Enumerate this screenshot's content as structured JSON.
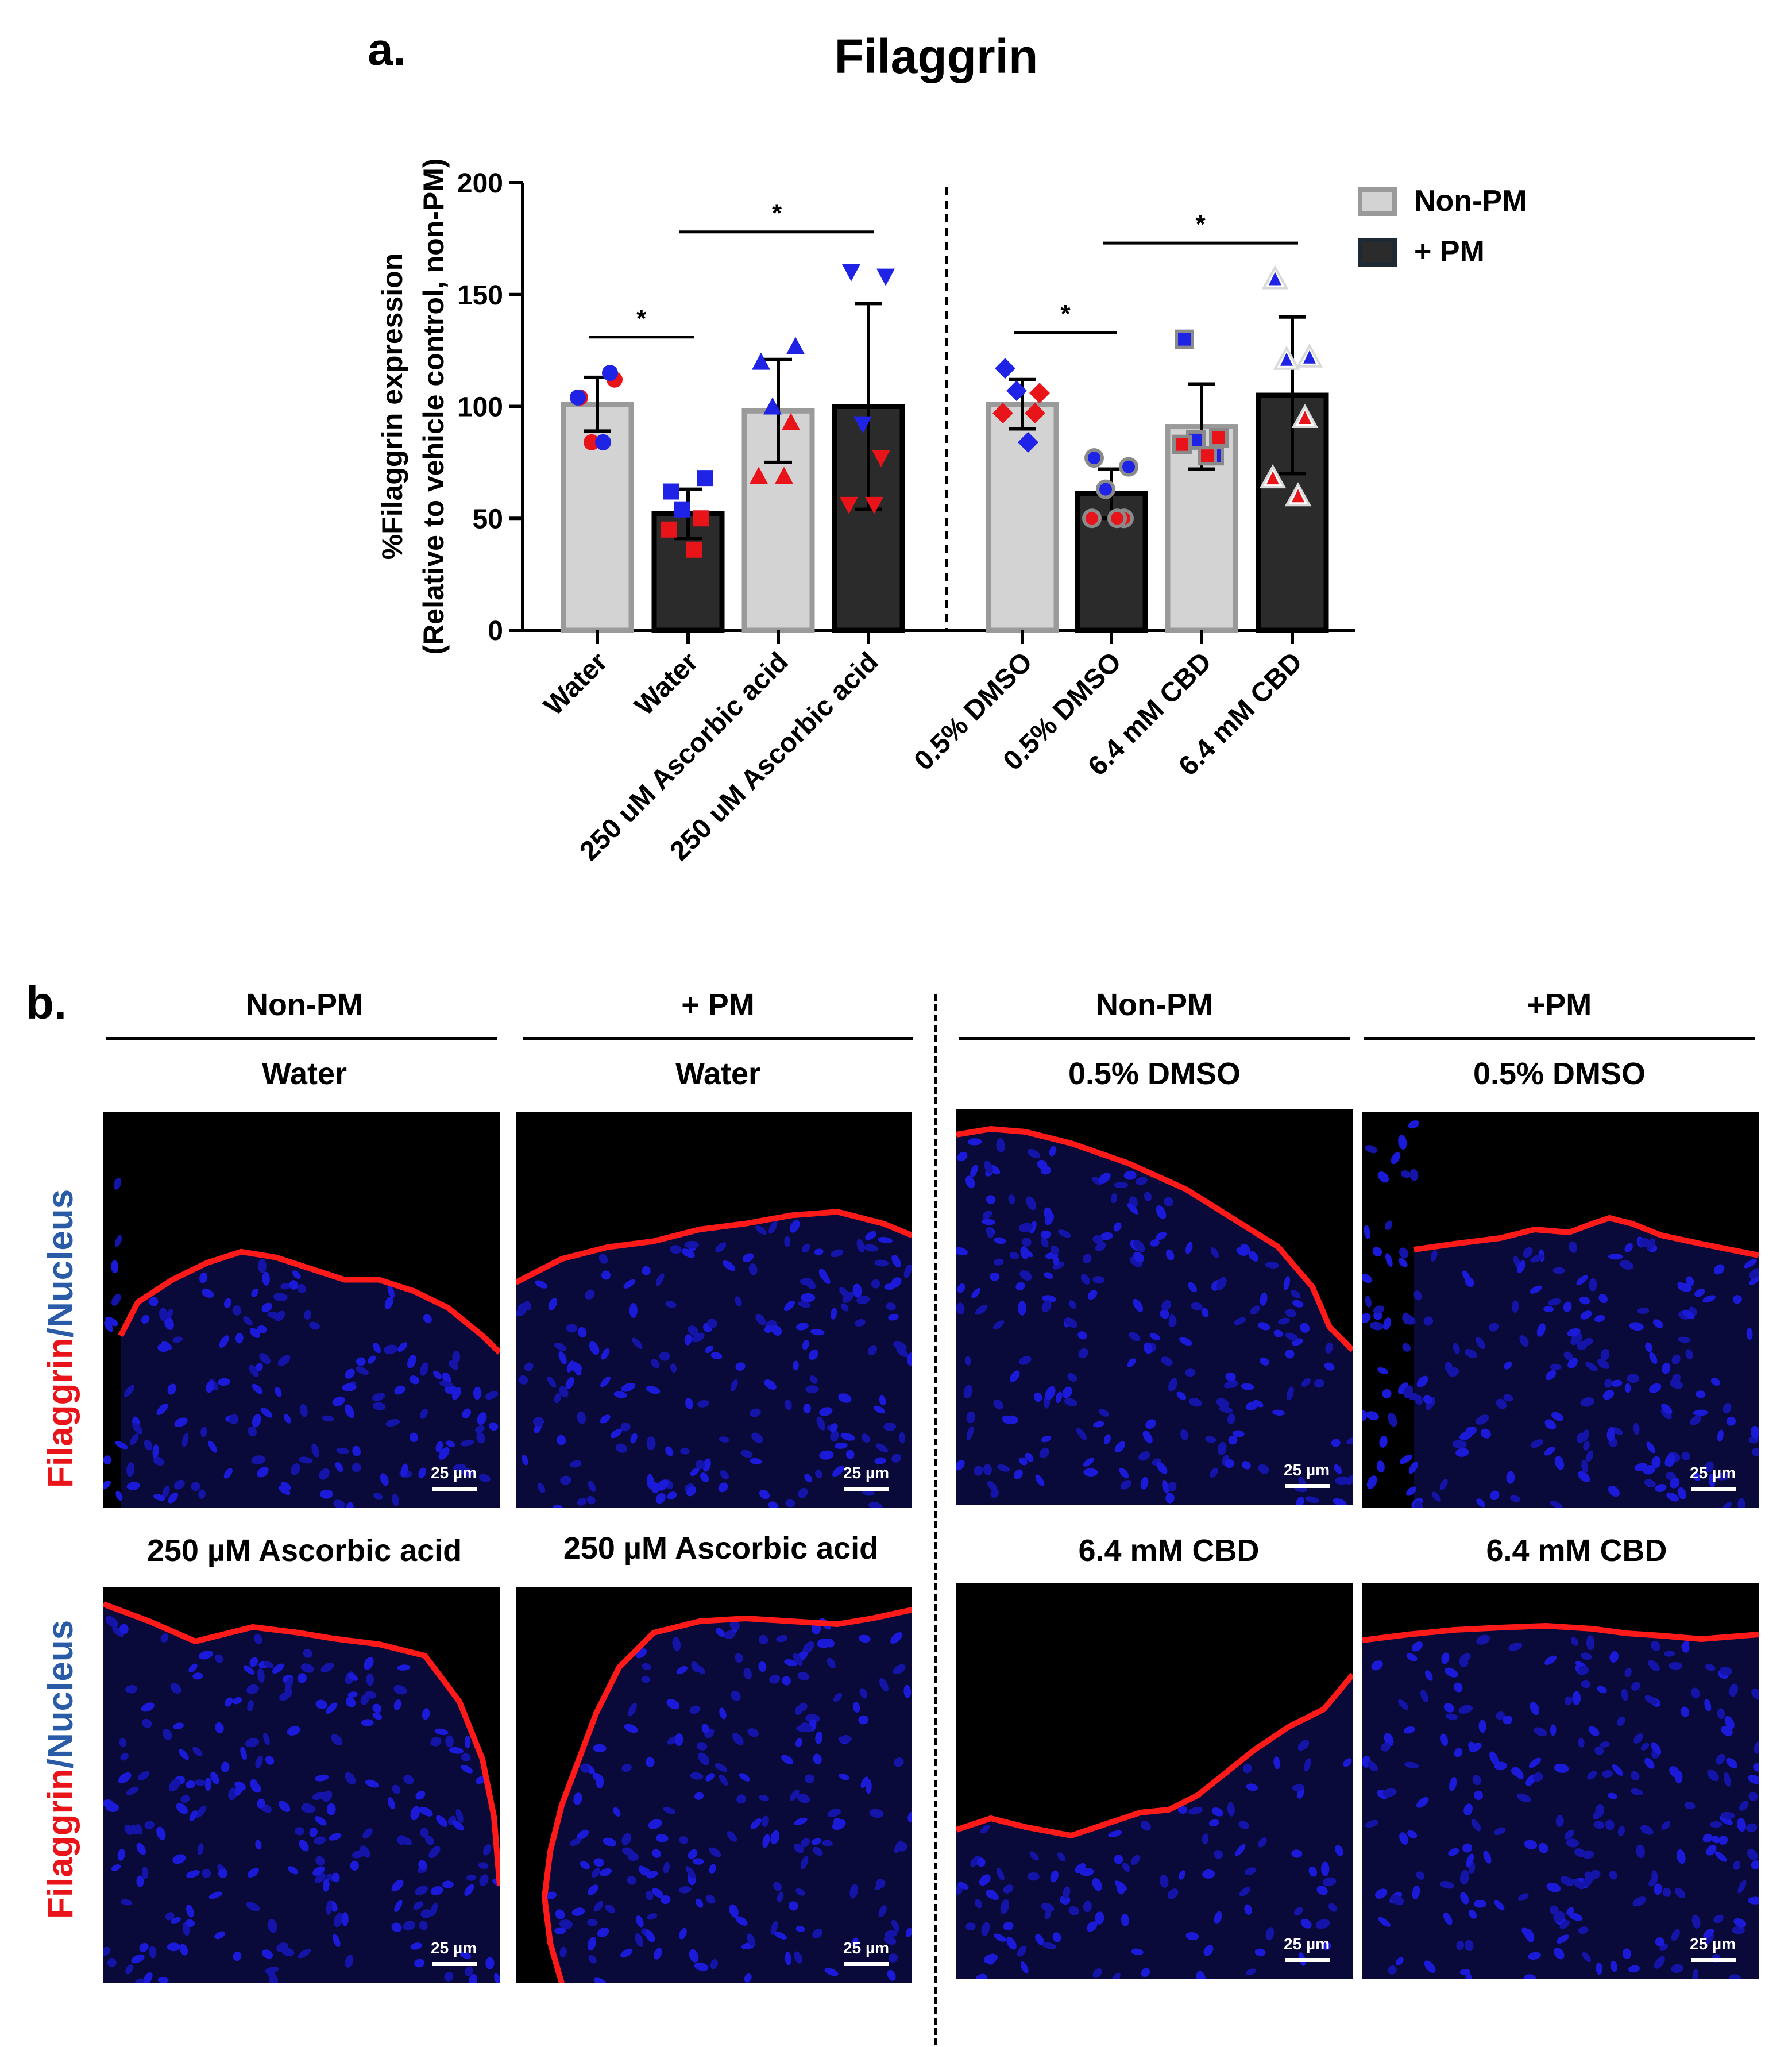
{
  "panel_a": {
    "letter": "a."
  },
  "panel_b": {
    "letter": "b.",
    "headers": [
      {
        "group": "Non-PM",
        "treatment": "Water"
      },
      {
        "group": "+ PM",
        "treatment": "Water"
      },
      {
        "group": "Non-PM",
        "treatment": "0.5% DMSO"
      },
      {
        "group": "+PM",
        "treatment": "0.5% DMSO"
      }
    ],
    "row2_headers": [
      "250 µM Ascorbic acid",
      "250 µM Ascorbic acid",
      "6.4 mM CBD",
      "6.4 mM CBD"
    ],
    "side_label": {
      "stain": "Filaggrin",
      "sep": "/",
      "counter": "Nucleus"
    },
    "scale_label": "25 µm"
  },
  "chart_data": {
    "type": "bar",
    "title": "Filaggrin",
    "ylabel_line1": "%Filaggrin expression",
    "ylabel_line2": "(Relative to vehicle control, non-PM)",
    "ylim": [
      0,
      200
    ],
    "yticks": [
      0,
      50,
      100,
      150,
      200
    ],
    "legend": [
      {
        "label": "Non-PM",
        "color": "#d3d3d3"
      },
      {
        "label": "+ PM",
        "color": "#2b2b2b"
      }
    ],
    "categories": [
      "Water",
      "Water",
      "250 uM Ascorbic acid",
      "250 uM Ascorbic acid",
      "0.5% DMSO",
      "0.5% DMSO",
      "6.4 mM CBD",
      "6.4 mM CBD"
    ],
    "groups": [
      "Non-PM",
      "+ PM",
      "Non-PM",
      "+ PM",
      "Non-PM",
      "+ PM",
      "Non-PM",
      "+ PM"
    ],
    "values": [
      101,
      52,
      98,
      100,
      101,
      61,
      91,
      105
    ],
    "errors": [
      12,
      11,
      23,
      46,
      11,
      11,
      19,
      35
    ],
    "points": [
      {
        "shape": "circle",
        "pts": [
          [
            104,
            "#e8141a"
          ],
          [
            112,
            "#e8141a"
          ],
          [
            84,
            "#e8141a"
          ],
          [
            115,
            "#1e23e6"
          ],
          [
            104,
            "#1e23e6"
          ],
          [
            84,
            "#1e23e6"
          ]
        ]
      },
      {
        "shape": "square",
        "pts": [
          [
            62,
            "#1e23e6"
          ],
          [
            68,
            "#1e23e6"
          ],
          [
            54,
            "#1e23e6"
          ],
          [
            50,
            "#e8141a"
          ],
          [
            45,
            "#e8141a"
          ],
          [
            36,
            "#e8141a"
          ]
        ]
      },
      {
        "shape": "triangle",
        "pts": [
          [
            120,
            "#1e23e6"
          ],
          [
            127,
            "#1e23e6"
          ],
          [
            100,
            "#1e23e6"
          ],
          [
            93,
            "#e8141a"
          ],
          [
            69,
            "#e8141a"
          ],
          [
            69,
            "#e8141a"
          ]
        ]
      },
      {
        "shape": "tri-down",
        "pts": [
          [
            160,
            "#1e23e6"
          ],
          [
            158,
            "#1e23e6"
          ],
          [
            92,
            "#1e23e6"
          ],
          [
            77,
            "#e8141a"
          ],
          [
            56,
            "#e8141a"
          ],
          [
            56,
            "#e8141a"
          ]
        ]
      },
      {
        "shape": "diamond",
        "pts": [
          [
            117,
            "#1e23e6"
          ],
          [
            106,
            "#e8141a"
          ],
          [
            107,
            "#1e23e6"
          ],
          [
            97,
            "#e8141a"
          ],
          [
            97,
            "#e8141a"
          ],
          [
            84,
            "#1e23e6"
          ]
        ]
      },
      {
        "shape": "circle-ring",
        "pts": [
          [
            77,
            "#1e23e6"
          ],
          [
            73,
            "#1e23e6"
          ],
          [
            63,
            "#1e23e6"
          ],
          [
            50,
            "#e8141a"
          ],
          [
            50,
            "#e8141a"
          ],
          [
            50,
            "#e8141a"
          ]
        ]
      },
      {
        "shape": "square-ring",
        "pts": [
          [
            130,
            "#1e23e6"
          ],
          [
            86,
            "#e8141a"
          ],
          [
            85,
            "#1e23e6"
          ],
          [
            78,
            "#1e23e6"
          ],
          [
            83,
            "#e8141a"
          ],
          [
            78,
            "#e8141a"
          ]
        ]
      },
      {
        "shape": "tri-ring",
        "pts": [
          [
            157,
            "#1e23e6"
          ],
          [
            122,
            "#1e23e6"
          ],
          [
            121,
            "#1e23e6"
          ],
          [
            95,
            "#e8141a"
          ],
          [
            68,
            "#e8141a"
          ],
          [
            60,
            "#e8141a"
          ]
        ]
      }
    ],
    "significance": [
      {
        "from": 0,
        "to": 1,
        "y": 131,
        "label": "*"
      },
      {
        "from": 1,
        "to": 3,
        "y": 178,
        "label": "*"
      },
      {
        "from": 4,
        "to": 5,
        "y": 133,
        "label": "*"
      },
      {
        "from": 5,
        "to": 7,
        "y": 173,
        "label": "*"
      }
    ]
  }
}
